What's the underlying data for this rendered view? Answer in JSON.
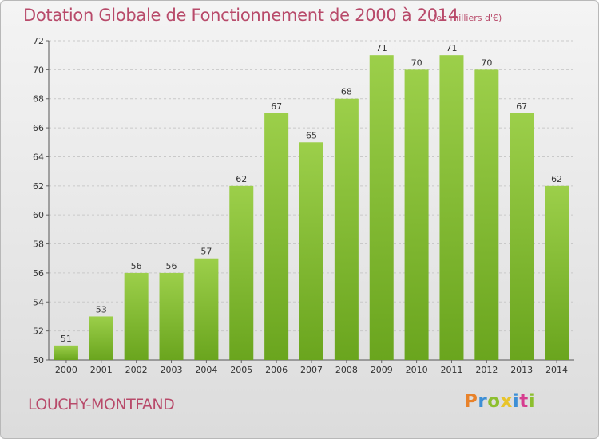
{
  "header": {
    "title": "Dotation Globale de Fonctionnement de 2000 à 2014",
    "unit": "(en milliers d'€)"
  },
  "footer": {
    "commune": "LOUCHY-MONTFAND",
    "logo_letters": [
      "P",
      "r",
      "o",
      "x",
      "i",
      "t",
      "i"
    ],
    "logo_colors": [
      "#e8822a",
      "#3d8fd6",
      "#8dbf2f",
      "#e8c42a",
      "#3d8fd6",
      "#d63d8f",
      "#8dbf2f"
    ]
  },
  "colors": {
    "bar_light": "#9ccf4a",
    "bar_dark": "#6aa51e",
    "grid": "#c9c9c9",
    "accent": "#b84a6a"
  },
  "chart_data": {
    "type": "bar",
    "categories": [
      "2000",
      "2001",
      "2002",
      "2003",
      "2004",
      "2005",
      "2006",
      "2007",
      "2008",
      "2009",
      "2010",
      "2011",
      "2012",
      "2013",
      "2014"
    ],
    "values": [
      51,
      53,
      56,
      56,
      57,
      62,
      67,
      65,
      68,
      71,
      70,
      71,
      70,
      67,
      62
    ],
    "ylim": [
      50,
      72
    ],
    "yticks": [
      50,
      52,
      54,
      56,
      58,
      60,
      62,
      64,
      66,
      68,
      70,
      72
    ],
    "grid": true,
    "data_labels": true
  }
}
